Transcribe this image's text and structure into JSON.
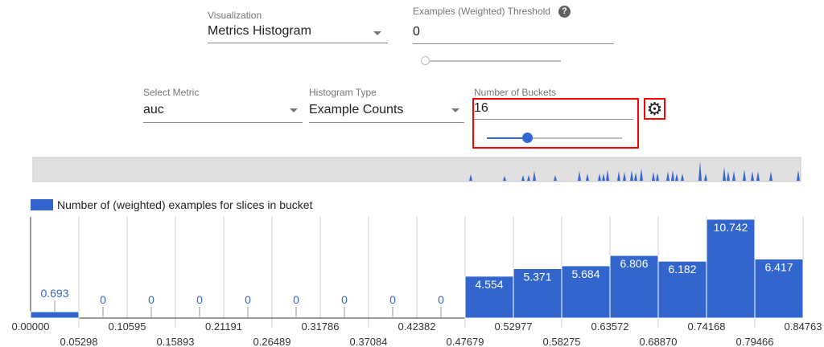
{
  "controls": {
    "visualization": {
      "label": "Visualization",
      "value": "Metrics Histogram"
    },
    "threshold": {
      "label": "Examples (Weighted) Threshold",
      "value": "0",
      "slider_fraction": 0.0,
      "help_icon": "help-icon"
    },
    "metric": {
      "label": "Select Metric",
      "value": "auc"
    },
    "histogram_type": {
      "label": "Histogram Type",
      "value": "Example Counts"
    },
    "buckets": {
      "label": "Number of Buckets",
      "value": "16",
      "slider_fraction": 0.3
    },
    "settings_icon": "gear-icon",
    "highlight_color": "#ff0000"
  },
  "chart_data": {
    "type": "bar",
    "legend": "Number of (weighted) examples for slices in bucket",
    "color": "#3366cc",
    "bucket_edges": [
      "0.00000",
      "0.05298",
      "0.10595",
      "0.15893",
      "0.21191",
      "0.26489",
      "0.31786",
      "0.37084",
      "0.42382",
      "0.47679",
      "0.52977",
      "0.58275",
      "0.63572",
      "0.68870",
      "0.74168",
      "0.79466",
      "0.84763"
    ],
    "values": [
      0.693,
      0,
      0,
      0,
      0,
      0,
      0,
      0,
      0,
      4.554,
      5.371,
      5.684,
      6.806,
      6.182,
      10.742,
      6.417
    ],
    "value_labels": [
      "0.693",
      "0",
      "0",
      "0",
      "0",
      "0",
      "0",
      "0",
      "0",
      "4.554",
      "5.371",
      "5.684",
      "6.806",
      "6.182",
      "10.742",
      "6.417"
    ],
    "ylim": [
      0,
      11
    ],
    "legend_placement": "top-left"
  }
}
